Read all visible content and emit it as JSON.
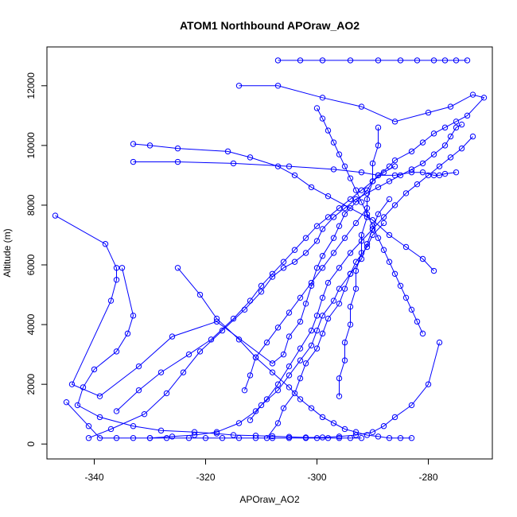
{
  "chart_data": {
    "type": "line",
    "title": "ATOM1 Northbound APOraw_AO2",
    "xlabel": "APOraw_AO2",
    "ylabel": "Altitude (m)",
    "xlim": [
      -348.5,
      -268.5
    ],
    "ylim": [
      -500,
      13300
    ],
    "xticks": [
      -340,
      -320,
      -300,
      -280
    ],
    "yticks": [
      0,
      2000,
      4000,
      6000,
      8000,
      10000,
      12000
    ],
    "grid": false,
    "series": [
      {
        "color": "#0000FF",
        "marker": "open-circle",
        "x": [
          -347,
          -338,
          -336,
          -336,
          -337,
          -344,
          -339,
          -332,
          -326,
          -318,
          -308,
          -306,
          -305,
          -303,
          -302,
          -301,
          -300,
          -299,
          -297,
          -296,
          -295,
          -293,
          -291,
          -290,
          -289,
          -287,
          -286,
          -283,
          -281,
          -279,
          -277,
          -275,
          -273,
          -270,
          -272,
          -276,
          -280,
          -286,
          -292,
          -299,
          -307,
          -314
        ],
        "y": [
          7650,
          6700,
          5900,
          5500,
          4800,
          2000,
          1600,
          2600,
          3600,
          4100,
          2700,
          3000,
          3600,
          4100,
          4700,
          5300,
          5900,
          6300,
          6900,
          7300,
          7700,
          8100,
          8500,
          8800,
          9000,
          9300,
          9500,
          9800,
          10100,
          10400,
          10600,
          10800,
          11000,
          11600,
          11700,
          11300,
          11100,
          10800,
          11300,
          11600,
          12000,
          12000
        ]
      },
      {
        "color": "#0000FF",
        "marker": "open-circle",
        "x": [
          -345,
          -341,
          -339,
          -336,
          -333,
          -330,
          -326,
          -322,
          -318,
          -314,
          -311,
          -309,
          -307,
          -305,
          -303,
          -301,
          -300,
          -299,
          -298,
          -296,
          -294,
          -292,
          -290,
          -288,
          -286,
          -284,
          -282,
          -280,
          -278,
          -276,
          -274,
          -272
        ],
        "y": [
          1400,
          600,
          200,
          200,
          200,
          200,
          250,
          300,
          400,
          700,
          1100,
          1500,
          2000,
          2600,
          3200,
          3800,
          4300,
          4900,
          5400,
          5900,
          6400,
          6800,
          7200,
          7600,
          8000,
          8400,
          8700,
          9000,
          9300,
          9600,
          9900,
          10300
        ]
      },
      {
        "color": "#0000FF",
        "marker": "open-circle",
        "x": [
          -341,
          -337,
          -331,
          -327,
          -324,
          -321,
          -317,
          -313,
          -310,
          -308,
          -306,
          -304,
          -302,
          -300,
          -299,
          -297,
          -295,
          -293,
          -291,
          -289,
          -287,
          -285,
          -283,
          -281,
          -279,
          -277,
          -276,
          -275,
          -274
        ],
        "y": [
          200,
          500,
          1000,
          1700,
          2400,
          3100,
          3800,
          4500,
          5100,
          5600,
          5900,
          6100,
          6400,
          6800,
          7200,
          7600,
          7900,
          8200,
          8400,
          8600,
          8800,
          9000,
          9200,
          9400,
          9700,
          10000,
          10300,
          10600,
          10700
        ]
      },
      {
        "color": "#0000FF",
        "marker": "open-circle",
        "x": [
          -333,
          -330,
          -325,
          -316,
          -312,
          -307,
          -304,
          -301,
          -298,
          -294,
          -290,
          -287,
          -284,
          -281,
          -279
        ],
        "y": [
          10050,
          10000,
          9900,
          9800,
          9600,
          9300,
          9000,
          8600,
          8300,
          7900,
          7500,
          7000,
          6600,
          6200,
          5800
        ]
      },
      {
        "color": "#0000FF",
        "marker": "open-circle",
        "x": [
          -333,
          -325,
          -315,
          -305,
          -297,
          -292,
          -289,
          -286,
          -283,
          -281,
          -279,
          -278,
          -277,
          -275
        ],
        "y": [
          9450,
          9450,
          9400,
          9300,
          9200,
          9100,
          9000,
          9000,
          9100,
          9100,
          9000,
          9000,
          9050,
          9100
        ]
      },
      {
        "color": "#0000FF",
        "marker": "open-circle",
        "x": [
          -336,
          -332,
          -328,
          -323,
          -319,
          -315,
          -312,
          -310,
          -308,
          -306,
          -304,
          -302,
          -300,
          -298,
          -296,
          -294,
          -292,
          -290,
          -288,
          -286
        ],
        "y": [
          1100,
          1800,
          2400,
          3000,
          3500,
          4200,
          4800,
          5300,
          5700,
          6100,
          6500,
          6900,
          7300,
          7600,
          7900,
          8200,
          8500,
          8800,
          9100,
          9300
        ]
      },
      {
        "color": "#0000FF",
        "marker": "open-circle",
        "x": [
          -335,
          -333,
          -334,
          -336,
          -340,
          -342,
          -343,
          -339,
          -333,
          -328,
          -322,
          -318,
          -315,
          -311,
          -308,
          -305,
          -302,
          -299,
          -296,
          -293,
          -290,
          -288,
          -286,
          -283,
          -280,
          -278
        ],
        "y": [
          5900,
          4300,
          3700,
          3100,
          2500,
          1900,
          1300,
          900,
          600,
          450,
          400,
          350,
          300,
          280,
          260,
          240,
          220,
          220,
          250,
          300,
          400,
          600,
          900,
          1300,
          2000,
          3400
        ]
      },
      {
        "color": "#0000FF",
        "marker": "open-circle",
        "x": [
          -325,
          -321,
          -318,
          -314,
          -311,
          -308,
          -305,
          -303,
          -301,
          -299,
          -297,
          -295,
          -293,
          -291,
          -289,
          -287,
          -285,
          -283
        ],
        "y": [
          5900,
          5000,
          4200,
          3500,
          2900,
          2400,
          1900,
          1500,
          1200,
          900,
          700,
          500,
          400,
          300,
          250,
          200,
          200,
          200
        ]
      },
      {
        "color": "#0000FF",
        "marker": "open-circle",
        "x": [
          -312,
          -310,
          -307,
          -305,
          -303,
          -301,
          -300,
          -299,
          -297,
          -296,
          -294,
          -293,
          -291,
          -290,
          -288
        ],
        "y": [
          800,
          1300,
          1800,
          2300,
          2800,
          3300,
          3800,
          4300,
          4800,
          5200,
          5700,
          6100,
          6600,
          7000,
          7400
        ]
      },
      {
        "color": "#0000FF",
        "marker": "open-circle",
        "x": [
          -309,
          -307,
          -306,
          -304,
          -303,
          -302,
          -300,
          -299,
          -298,
          -296,
          -295,
          -294,
          -292,
          -291,
          -290,
          -289,
          -287
        ],
        "y": [
          200,
          700,
          1200,
          1700,
          2200,
          2700,
          3200,
          3700,
          4200,
          4700,
          5200,
          5700,
          6200,
          6700,
          7200,
          7700,
          8200
        ]
      },
      {
        "color": "#0000FF",
        "marker": "open-circle",
        "x": [
          -307,
          -303,
          -299,
          -294,
          -289,
          -285,
          -282,
          -279,
          -277,
          -275,
          -273
        ],
        "y": [
          12850,
          12850,
          12850,
          12850,
          12850,
          12850,
          12850,
          12850,
          12850,
          12850,
          12850
        ]
      },
      {
        "color": "#0000FF",
        "marker": "open-circle",
        "x": [
          -300,
          -299,
          -298,
          -297,
          -296,
          -295,
          -294,
          -293,
          -292,
          -291,
          -290,
          -289,
          -288,
          -287,
          -286,
          -285,
          -284,
          -283,
          -282,
          -281
        ],
        "y": [
          11250,
          10900,
          10500,
          10100,
          9700,
          9300,
          8900,
          8500,
          8100,
          7700,
          7300,
          6900,
          6500,
          6100,
          5700,
          5300,
          4900,
          4500,
          4100,
          3700
        ]
      },
      {
        "color": "#0000FF",
        "marker": "open-circle",
        "x": [
          -330,
          -327,
          -323,
          -320,
          -317,
          -314,
          -311,
          -308,
          -305,
          -302,
          -300,
          -298,
          -296,
          -294,
          -292
        ],
        "y": [
          200,
          200,
          200,
          200,
          200,
          200,
          200,
          200,
          200,
          200,
          200,
          200,
          200,
          200,
          200
        ]
      },
      {
        "color": "#0000FF",
        "marker": "open-circle",
        "x": [
          -296,
          -296,
          -295,
          -295,
          -294,
          -294,
          -293,
          -293,
          -292,
          -292,
          -291,
          -291,
          -290,
          -290,
          -289,
          -289
        ],
        "y": [
          1600,
          2200,
          2800,
          3400,
          4000,
          4600,
          5200,
          5800,
          6400,
          7000,
          7600,
          8200,
          8800,
          9400,
          10000,
          10600
        ]
      },
      {
        "color": "#0000FF",
        "marker": "open-circle",
        "x": [
          -313,
          -312,
          -311,
          -309,
          -307,
          -305,
          -303,
          -301,
          -299,
          -297,
          -295,
          -293,
          -291
        ],
        "y": [
          1800,
          2300,
          2900,
          3400,
          3900,
          4400,
          4900,
          5400,
          5900,
          6400,
          6900,
          7400,
          7900
        ]
      }
    ]
  }
}
